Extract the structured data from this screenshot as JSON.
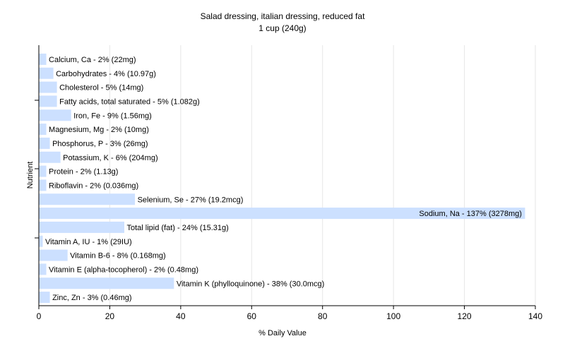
{
  "chart_data": {
    "type": "bar",
    "orientation": "horizontal",
    "title": "Salad dressing, italian dressing, reduced fat",
    "subtitle": "1 cup (240g)",
    "xlabel": "% Daily Value",
    "ylabel": "Nutrient",
    "xlim": [
      0,
      140
    ],
    "xticks": [
      0,
      20,
      40,
      60,
      80,
      100,
      120,
      140
    ],
    "grid": true,
    "bar_color": "#cce0ff",
    "categories": [
      "Calcium, Ca",
      "Carbohydrates",
      "Cholesterol",
      "Fatty acids, total saturated",
      "Iron, Fe",
      "Magnesium, Mg",
      "Phosphorus, P",
      "Potassium, K",
      "Protein",
      "Riboflavin",
      "Selenium, Se",
      "Sodium, Na",
      "Total lipid (fat)",
      "Vitamin A, IU",
      "Vitamin B-6",
      "Vitamin E (alpha-tocopherol)",
      "Vitamin K (phylloquinone)",
      "Zinc, Zn"
    ],
    "values": [
      2,
      4,
      5,
      5,
      9,
      2,
      3,
      6,
      2,
      2,
      27,
      137,
      24,
      1,
      8,
      2,
      38,
      3
    ],
    "labels": [
      "Calcium, Ca - 2% (22mg)",
      "Carbohydrates - 4% (10.97g)",
      "Cholesterol - 5% (14mg)",
      "Fatty acids, total saturated - 5% (1.082g)",
      "Iron, Fe - 9% (1.56mg)",
      "Magnesium, Mg - 2% (10mg)",
      "Phosphorus, P - 3% (26mg)",
      "Potassium, K - 6% (204mg)",
      "Protein - 2% (1.13g)",
      "Riboflavin - 2% (0.036mg)",
      "Selenium, Se - 27% (19.2mcg)",
      "Sodium, Na - 137% (3278mg)",
      "Total lipid (fat) - 24% (15.31g)",
      "Vitamin A, IU - 1% (29IU)",
      "Vitamin B-6 - 8% (0.168mg)",
      "Vitamin E (alpha-tocopherol) - 2% (0.48mg)",
      "Vitamin K (phylloquinone) - 38% (30.0mcg)",
      "Zinc, Zn - 3% (0.46mg)"
    ]
  }
}
